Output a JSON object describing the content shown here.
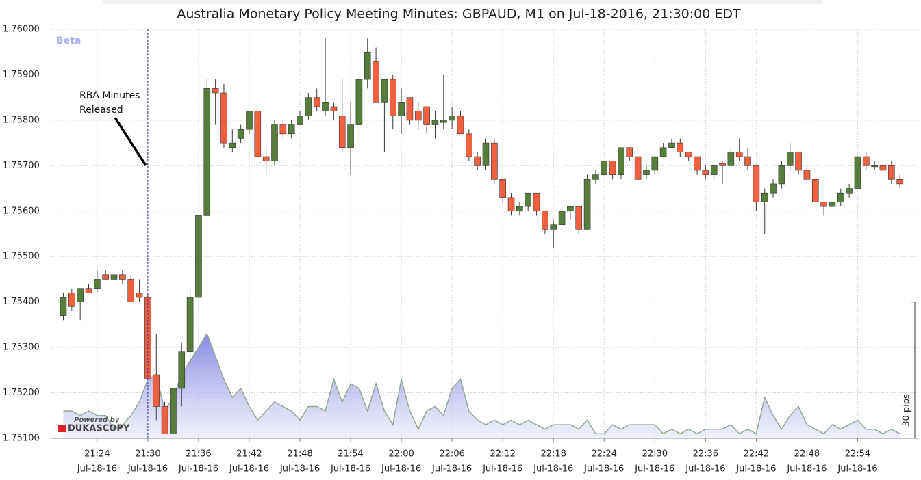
{
  "chart_data": {
    "type": "candlestick",
    "title": "Australia Monetary Policy Meeting Minutes: GBPAUD, M1 on Jul-18-2016, 21:30:00 EDT",
    "badge": "Beta",
    "branding": [
      "Powered by",
      "DUKASCOPY"
    ],
    "x_sublabel": "Jul-18-16",
    "categories": [
      null,
      null,
      null,
      null,
      "21:24",
      null,
      null,
      null,
      null,
      null,
      "21:30",
      null,
      null,
      null,
      null,
      null,
      "21:36",
      null,
      null,
      null,
      null,
      null,
      "21:42",
      null,
      null,
      null,
      null,
      null,
      "21:48",
      null,
      null,
      null,
      null,
      null,
      "21:54",
      null,
      null,
      null,
      null,
      null,
      "22:00",
      null,
      null,
      null,
      null,
      null,
      "22:06",
      null,
      null,
      null,
      null,
      null,
      "22:12",
      null,
      null,
      null,
      null,
      null,
      "22:18",
      null,
      null,
      null,
      null,
      null,
      "22:24",
      null,
      null,
      null,
      null,
      null,
      "22:30",
      null,
      null,
      null,
      null,
      null,
      "22:36",
      null,
      null,
      null,
      null,
      null,
      "22:42",
      null,
      null,
      null,
      null,
      null,
      "22:48",
      null,
      null,
      null,
      null,
      null,
      "22:54",
      null,
      null,
      null,
      null,
      null
    ],
    "open": [
      1.7537,
      1.7542,
      1.754,
      1.7543,
      1.7543,
      1.7546,
      1.7545,
      1.7546,
      1.7545,
      1.7542,
      1.7541,
      1.7524,
      1.7517,
      1.7511,
      1.7521,
      1.7529,
      1.7541,
      1.7559,
      1.7587,
      1.7586,
      1.7574,
      1.7576,
      1.7578,
      1.7582,
      1.7572,
      1.7571,
      1.7579,
      1.7577,
      1.7579,
      1.7581,
      1.7585,
      1.7582,
      1.7583,
      1.7581,
      1.7574,
      1.7579,
      1.7589,
      1.7593,
      1.7584,
      1.7589,
      1.7581,
      1.7585,
      1.7582,
      1.7583,
      1.7579,
      1.75795,
      1.758,
      1.7581,
      1.7577,
      1.7572,
      1.757,
      1.7575,
      1.7567,
      1.7563,
      1.756,
      1.7561,
      1.7564,
      1.756,
      1.7556,
      1.7557,
      1.756,
      1.7561,
      1.7556,
      1.7567,
      1.7568,
      1.7571,
      1.7568,
      1.7574,
      1.7572,
      1.7568,
      1.7569,
      1.7572,
      1.7574,
      1.7575,
      1.7573,
      1.7572,
      1.7569,
      1.7568,
      1.75705,
      1.757,
      1.7573,
      1.7572,
      1.757,
      1.7562,
      1.7564,
      1.7566,
      1.757,
      1.7573,
      1.7569,
      1.7567,
      1.7562,
      1.7561,
      1.7562,
      1.7564,
      1.7565,
      1.7572,
      1.75698,
      1.757,
      1.757,
      1.7567
    ],
    "high": [
      1.7542,
      1.7543,
      1.7543,
      1.7544,
      1.7547,
      1.7547,
      1.7546,
      1.7547,
      1.7546,
      1.7545,
      1.7542,
      1.7533,
      1.7518,
      1.7521,
      1.7531,
      1.7543,
      1.7559,
      1.7589,
      1.7589,
      1.7588,
      1.7578,
      1.7579,
      1.7582,
      1.7582,
      1.7574,
      1.758,
      1.758,
      1.758,
      1.7582,
      1.7586,
      1.7587,
      1.7598,
      1.7584,
      1.7589,
      1.7584,
      1.759,
      1.7598,
      1.7596,
      1.7589,
      1.759,
      1.7587,
      1.7585,
      1.7584,
      1.7583,
      1.7582,
      1.759,
      1.7583,
      1.7582,
      1.7578,
      1.7573,
      1.7576,
      1.7576,
      1.7567,
      1.7564,
      1.7562,
      1.7564,
      1.7564,
      1.756,
      1.7558,
      1.7561,
      1.7561,
      1.7561,
      1.7568,
      1.7569,
      1.7571,
      1.7571,
      1.7574,
      1.7574,
      1.7572,
      1.757,
      1.7572,
      1.7575,
      1.7576,
      1.7576,
      1.7573,
      1.7572,
      1.757,
      1.757,
      1.7571,
      1.7574,
      1.7576,
      1.7574,
      1.757,
      1.7565,
      1.7567,
      1.7571,
      1.7575,
      1.7573,
      1.757,
      1.7567,
      1.7562,
      1.7562,
      1.7565,
      1.7566,
      1.7572,
      1.7573,
      1.7571,
      1.7571,
      1.7571,
      1.7568
    ],
    "low": [
      1.7536,
      1.7538,
      1.7536,
      1.7542,
      1.7542,
      1.7545,
      1.7544,
      1.7544,
      1.754,
      1.754,
      1.7523,
      1.7514,
      1.7511,
      1.7511,
      1.7517,
      1.7526,
      1.7541,
      1.7559,
      1.7579,
      1.7574,
      1.7573,
      1.7575,
      1.7577,
      1.7572,
      1.7568,
      1.757,
      1.7576,
      1.7576,
      1.7579,
      1.758,
      1.7582,
      1.7581,
      1.758,
      1.7573,
      1.7568,
      1.7576,
      1.7587,
      1.7584,
      1.7573,
      1.7578,
      1.7577,
      1.7579,
      1.7578,
      1.7577,
      1.7576,
      1.7578,
      1.7578,
      1.7577,
      1.7571,
      1.7569,
      1.7569,
      1.7566,
      1.7562,
      1.7559,
      1.7559,
      1.756,
      1.7559,
      1.7555,
      1.7552,
      1.7556,
      1.7558,
      1.7555,
      1.7556,
      1.7566,
      1.7568,
      1.7567,
      1.7567,
      1.7571,
      1.7567,
      1.7567,
      1.7568,
      1.7572,
      1.7574,
      1.7572,
      1.7571,
      1.7568,
      1.7567,
      1.7567,
      1.7566,
      1.757,
      1.7571,
      1.7569,
      1.756,
      1.7555,
      1.7563,
      1.7565,
      1.7569,
      1.7568,
      1.7566,
      1.7562,
      1.7559,
      1.7561,
      1.7561,
      1.7563,
      1.7565,
      1.7569,
      1.7569,
      1.7569,
      1.7566,
      1.7565
    ],
    "close": [
      1.7541,
      1.7539,
      1.7543,
      1.7542,
      1.7545,
      1.7545,
      1.7546,
      1.7545,
      1.754,
      1.7541,
      1.7523,
      1.7517,
      1.7511,
      1.7521,
      1.7529,
      1.7541,
      1.7559,
      1.7587,
      1.7586,
      1.7575,
      1.7575,
      1.7578,
      1.7582,
      1.7572,
      1.7571,
      1.7579,
      1.7577,
      1.7579,
      1.7581,
      1.7585,
      1.7583,
      1.7584,
      1.7582,
      1.7574,
      1.7579,
      1.7589,
      1.7595,
      1.7584,
      1.7589,
      1.7581,
      1.7584,
      1.758,
      1.758,
      1.7579,
      1.758,
      1.758,
      1.7581,
      1.7577,
      1.7572,
      1.757,
      1.7575,
      1.7567,
      1.7563,
      1.756,
      1.7561,
      1.7564,
      1.756,
      1.7556,
      1.7557,
      1.756,
      1.7561,
      1.7556,
      1.7567,
      1.7568,
      1.7571,
      1.7568,
      1.7574,
      1.7572,
      1.7567,
      1.7569,
      1.7572,
      1.7574,
      1.7575,
      1.7573,
      1.7572,
      1.7569,
      1.7568,
      1.757,
      1.757,
      1.7573,
      1.7572,
      1.757,
      1.7562,
      1.7564,
      1.7566,
      1.757,
      1.7573,
      1.7569,
      1.7567,
      1.7562,
      1.7561,
      1.7562,
      1.7564,
      1.7565,
      1.7572,
      1.757,
      1.757,
      1.7569,
      1.7567,
      1.7566
    ],
    "up_color": "#567d3c",
    "down_color": "#f2613f",
    "range": {
      "axis": "y2",
      "color": "#8f8fe6",
      "values": [
        6,
        6,
        5,
        6,
        5,
        5,
        2,
        3,
        5,
        8,
        13,
        14,
        6,
        9,
        14,
        17,
        20,
        23,
        18,
        13,
        9,
        11,
        7,
        4,
        6,
        8,
        7,
        6,
        4,
        7,
        7,
        6,
        13,
        8,
        12,
        11,
        6,
        12,
        6,
        3,
        13,
        6,
        2,
        6,
        7,
        5,
        11,
        13,
        6,
        4,
        3,
        4,
        3,
        4,
        3,
        4,
        3,
        2,
        3,
        3,
        3,
        2,
        4,
        1,
        1,
        3,
        2,
        3,
        3,
        3,
        3,
        1,
        2,
        1,
        2,
        1,
        2,
        2,
        2,
        3,
        1,
        2,
        1,
        9,
        5,
        2,
        5,
        7,
        3,
        2,
        1,
        3,
        2,
        3,
        4,
        2,
        2,
        1,
        2,
        1
      ]
    },
    "y2lim": [
      0,
      90
    ],
    "scale_bar": {
      "value": 30,
      "label": "30 pips"
    },
    "ylim": [
      1.751,
      1.76
    ],
    "yticks": [
      {
        "value": 1.751,
        "label": "1.75100"
      },
      {
        "value": 1.752,
        "label": "1.75200"
      },
      {
        "value": 1.753,
        "label": "1.75300"
      },
      {
        "value": 1.754,
        "label": "1.75400"
      },
      {
        "value": 1.755,
        "label": "1.75500"
      },
      {
        "value": 1.756,
        "label": "1.75600"
      },
      {
        "value": 1.757,
        "label": "1.75700"
      },
      {
        "value": 1.758,
        "label": "1.75800"
      },
      {
        "value": 1.759,
        "label": "1.75900"
      },
      {
        "value": 1.76,
        "label": "1.76000"
      }
    ],
    "grid": true,
    "annotation": {
      "text": [
        "RBA Minutes",
        "Released"
      ],
      "at": "21:30"
    }
  }
}
